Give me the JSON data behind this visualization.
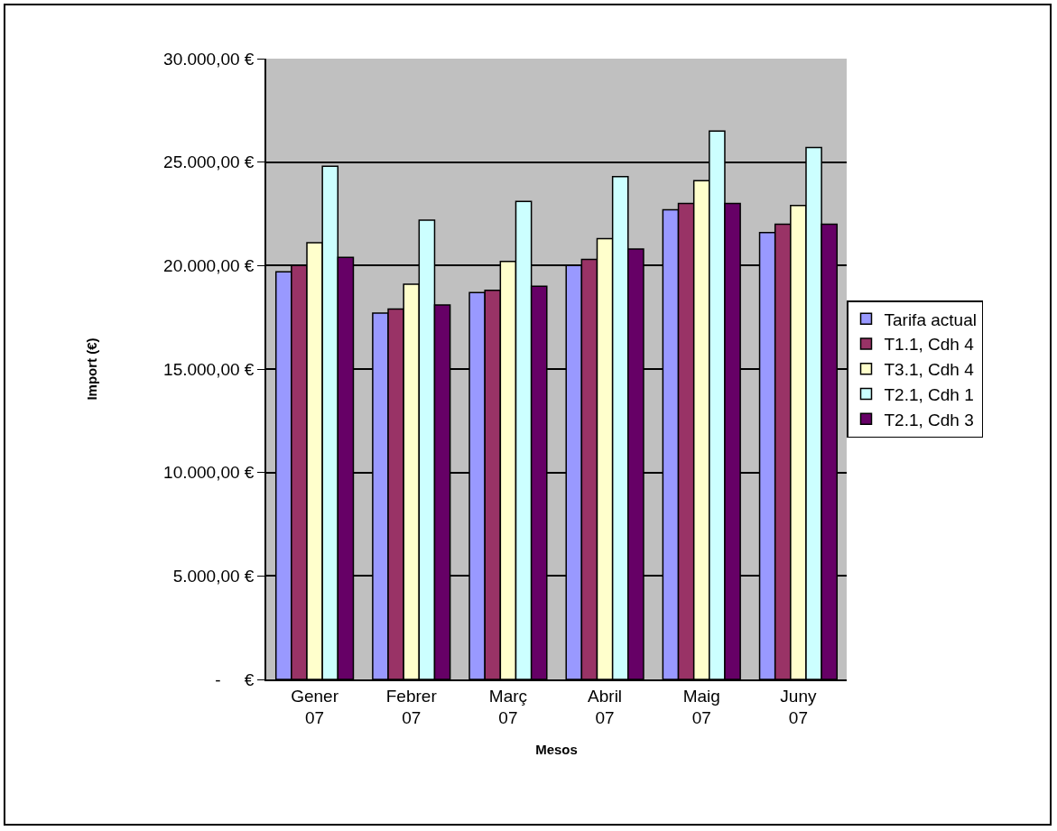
{
  "chart_data": {
    "type": "bar",
    "xlabel": "Mesos",
    "ylabel": "Import (€)",
    "categories": [
      "Gener 07",
      "Febrer 07",
      "Març 07",
      "Abril 07",
      "Maig 07",
      "Juny 07"
    ],
    "series": [
      {
        "name": "Tarifa actual",
        "color": "#9999ff",
        "values": [
          19700,
          17700,
          18700,
          20000,
          22700,
          21600
        ]
      },
      {
        "name": "T1.1, Cdh 4",
        "color": "#993366",
        "values": [
          20000,
          17900,
          18800,
          20300,
          23000,
          22000
        ]
      },
      {
        "name": "T3.1, Cdh 4",
        "color": "#ffffcc",
        "values": [
          21100,
          19100,
          20200,
          21300,
          24100,
          22900
        ]
      },
      {
        "name": "T2.1, Cdh 1",
        "color": "#ccffff",
        "values": [
          24800,
          22200,
          23100,
          24300,
          26500,
          25700
        ]
      },
      {
        "name": "T2.1, Cdh 3",
        "color": "#660066",
        "values": [
          20400,
          18100,
          19000,
          20800,
          23000,
          22000
        ]
      }
    ],
    "ylim": [
      0,
      30000
    ],
    "yticks": [
      {
        "value": 0,
        "label": "-     €"
      },
      {
        "value": 5000,
        "label": "5.000,00 €"
      },
      {
        "value": 10000,
        "label": "10.000,00 €"
      },
      {
        "value": 15000,
        "label": "15.000,00 €"
      },
      {
        "value": 20000,
        "label": "20.000,00 €"
      },
      {
        "value": 25000,
        "label": "25.000,00 €"
      },
      {
        "value": 30000,
        "label": "30.000,00 €"
      }
    ],
    "grid": "y",
    "legend": "right"
  }
}
